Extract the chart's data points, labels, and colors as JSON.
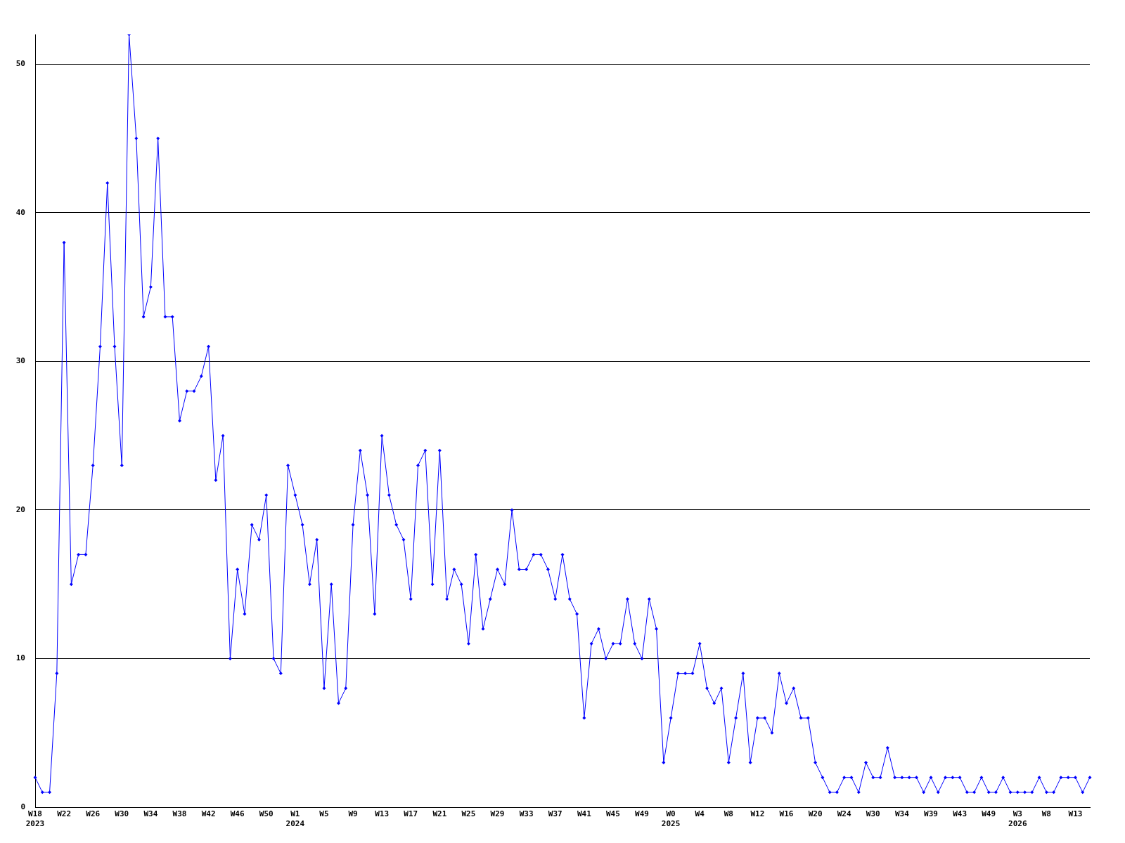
{
  "chart_data": {
    "type": "line",
    "categories": [
      "W18\n2023",
      null,
      null,
      null,
      "W22",
      null,
      null,
      null,
      "W26",
      null,
      null,
      null,
      "W30",
      null,
      null,
      null,
      "W34",
      null,
      null,
      null,
      "W38",
      null,
      null,
      null,
      "W42",
      null,
      null,
      null,
      "W46",
      null,
      null,
      null,
      "W50",
      null,
      null,
      null,
      "W1\n2024",
      null,
      null,
      null,
      "W5",
      null,
      null,
      null,
      "W9",
      null,
      null,
      null,
      "W13",
      null,
      null,
      null,
      "W17",
      null,
      null,
      null,
      "W21",
      null,
      null,
      null,
      "W25",
      null,
      null,
      null,
      "W29",
      null,
      null,
      null,
      "W33",
      null,
      null,
      null,
      "W37",
      null,
      null,
      null,
      "W41",
      null,
      null,
      null,
      "W45",
      null,
      null,
      null,
      "W49",
      null,
      null,
      null,
      "W0\n2025",
      null,
      null,
      null,
      "W4",
      null,
      null,
      null,
      "W8",
      null,
      null,
      null,
      "W12",
      null,
      null,
      null,
      "W16",
      null,
      null,
      null,
      "W20",
      null,
      null,
      null,
      "W24",
      null,
      null,
      null,
      "W30",
      null,
      null,
      null,
      "W34",
      null,
      null,
      null,
      "W39",
      null,
      null,
      null,
      "W43",
      null,
      null,
      null,
      "W49",
      null,
      null,
      null,
      "W3\n2026",
      null,
      null,
      null,
      "W8",
      null,
      null,
      null,
      "W13",
      null,
      null
    ],
    "series": [
      {
        "color": "#0000ff",
        "values": [
          2,
          1,
          1,
          9,
          38,
          15,
          17,
          17,
          23,
          31,
          42,
          31,
          23,
          52,
          45,
          33,
          35,
          45,
          33,
          33,
          26,
          28,
          28,
          29,
          31,
          22,
          25,
          10,
          16,
          13,
          19,
          18,
          21,
          10,
          9,
          23,
          21,
          19,
          15,
          18,
          8,
          15,
          7,
          8,
          19,
          24,
          21,
          13,
          25,
          21,
          19,
          18,
          14,
          23,
          24,
          15,
          24,
          14,
          16,
          15,
          11,
          17,
          12,
          14,
          16,
          15,
          20,
          16,
          16,
          17,
          17,
          16,
          14,
          17,
          14,
          13,
          6,
          11,
          12,
          10,
          11,
          11,
          14,
          11,
          10,
          14,
          12,
          3,
          6,
          9,
          9,
          9,
          11,
          8,
          7,
          8,
          3,
          6,
          9,
          3,
          6,
          6,
          5,
          9,
          7,
          8,
          6,
          6,
          3,
          2,
          1,
          1,
          2,
          2,
          1,
          3,
          2,
          2,
          4,
          2,
          2,
          2,
          2,
          1,
          2,
          1,
          2,
          2,
          2,
          1,
          1,
          2,
          1,
          1,
          2,
          1,
          1,
          1,
          1,
          2,
          1,
          1,
          2,
          2,
          2,
          1,
          2
        ]
      }
    ],
    "ylim": [
      0,
      52
    ],
    "yticks": [
      0,
      10,
      20,
      30,
      40,
      50
    ],
    "grid": "y",
    "legend": false,
    "marker": "diamond",
    "line_style": "solid"
  }
}
